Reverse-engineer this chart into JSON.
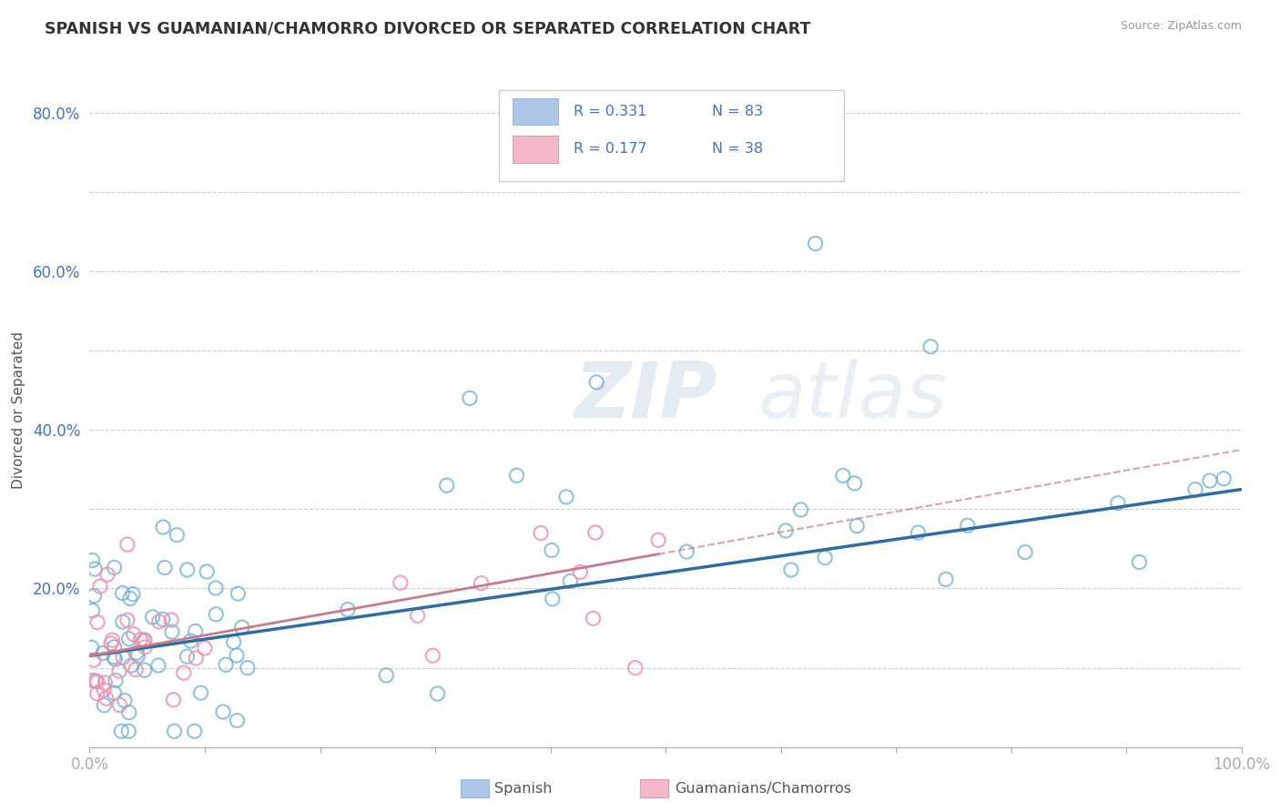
{
  "title": "SPANISH VS GUAMANIAN/CHAMORRO DIVORCED OR SEPARATED CORRELATION CHART",
  "source": "Source: ZipAtlas.com",
  "ylabel": "Divorced or Separated",
  "xlim": [
    0,
    1.0
  ],
  "ylim": [
    0,
    0.85
  ],
  "x_tick_vals": [
    0.0,
    0.1,
    0.2,
    0.3,
    0.4,
    0.5,
    0.6,
    0.7,
    0.8,
    0.9,
    1.0
  ],
  "x_tick_labels": [
    "0.0%",
    "",
    "",
    "",
    "",
    "",
    "",
    "",
    "",
    "",
    "100.0%"
  ],
  "y_tick_vals": [
    0.0,
    0.1,
    0.2,
    0.3,
    0.4,
    0.5,
    0.6,
    0.7,
    0.8
  ],
  "y_tick_labels": [
    "",
    "",
    "20.0%",
    "",
    "40.0%",
    "",
    "60.0%",
    "",
    "80.0%"
  ],
  "legend_color1": "#aec6e8",
  "legend_color2": "#f4b8c8",
  "scatter_color1": "#6aaed6",
  "scatter_color2": "#f48fb1",
  "line_color1": "#2e6da4",
  "line_color2": "#c97b8a",
  "R1": 0.331,
  "N1": 83,
  "R2": 0.177,
  "N2": 38,
  "watermark1": "ZIP",
  "watermark2": "atlas"
}
